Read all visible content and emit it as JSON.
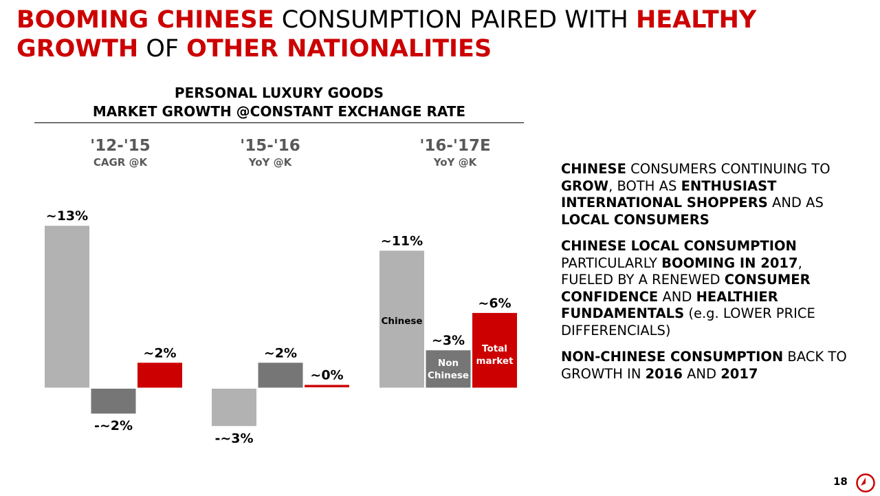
{
  "title": {
    "seg1": "BOOMING CHINESE",
    "seg2": " CONSUMPTION PAIRED WITH ",
    "seg3": "HEALTHY",
    "seg4": "GROWTH",
    "seg5": " OF ",
    "seg6": "OTHER NATIONALITIES"
  },
  "chart_header": {
    "line1": "PERSONAL LUXURY GOODS",
    "line2": "MARKET GROWTH @CONSTANT EXCHANGE RATE"
  },
  "periods": [
    {
      "label": "'12-'15",
      "sub": "CAGR @K"
    },
    {
      "label": "'15-'16",
      "sub": "YoY @K"
    },
    {
      "label": "'16-'17E",
      "sub": "YoY @K"
    }
  ],
  "colors": {
    "chinese": "#b2b2b2",
    "non_chinese": "#767676",
    "total": "#cc0000",
    "accent": "#cc0000"
  },
  "chart_data": {
    "type": "bar",
    "title": "PERSONAL LUXURY GOODS MARKET GROWTH @CONSTANT EXCHANGE RATE",
    "categories": [
      "'12-'15",
      "'15-'16",
      "'16-'17E"
    ],
    "series": [
      {
        "name": "Chinese",
        "values": [
          13,
          -3,
          11
        ],
        "labels": [
          "~13%",
          "-~3%",
          "~11%"
        ]
      },
      {
        "name": "Non Chinese",
        "values": [
          -2,
          2,
          3
        ],
        "labels": [
          "-~2%",
          "~2%",
          "~3%"
        ]
      },
      {
        "name": "Total market",
        "values": [
          2,
          0,
          6
        ],
        "labels": [
          "~2%",
          "~0%",
          "~6%"
        ]
      }
    ],
    "inside_labels": {
      "chinese": "Chinese",
      "non_chinese": "Non Chinese",
      "total": "Total market"
    },
    "unit": "%"
  },
  "side_text": {
    "p1": [
      {
        "t": "CHINESE",
        "b": true
      },
      {
        "t": " CONSUMERS CONTINUING TO ",
        "b": false
      },
      {
        "t": "GROW",
        "b": true
      },
      {
        "t": ", BOTH AS ",
        "b": false
      },
      {
        "t": "ENTHUSIAST INTERNATIONAL SHOPPERS",
        "b": true
      },
      {
        "t": " AND AS ",
        "b": false
      },
      {
        "t": "LOCAL CONSUMERS",
        "b": true
      }
    ],
    "p2": [
      {
        "t": "CHINESE LOCAL CONSUMPTION",
        "b": true
      },
      {
        "t": " PARTICULARLY ",
        "b": false
      },
      {
        "t": "BOOMING IN 2017",
        "b": true
      },
      {
        "t": ", FUELED BY A RENEWED ",
        "b": false
      },
      {
        "t": "CONSUMER CONFIDENCE",
        "b": true
      },
      {
        "t": " AND ",
        "b": false
      },
      {
        "t": "HEALTHIER FUNDAMENTALS",
        "b": true
      },
      {
        "t": " (e.g. LOWER PRICE DIFFERENCIALS)",
        "b": false
      }
    ],
    "p3": [
      {
        "t": "NON-CHINESE CONSUMPTION",
        "b": true
      },
      {
        "t": " BACK TO GROWTH IN ",
        "b": false
      },
      {
        "t": "2016",
        "b": true
      },
      {
        "t": " AND ",
        "b": false
      },
      {
        "t": "2017",
        "b": true
      }
    ]
  },
  "page_number": "18",
  "logo_icon": "brand-logo-icon"
}
